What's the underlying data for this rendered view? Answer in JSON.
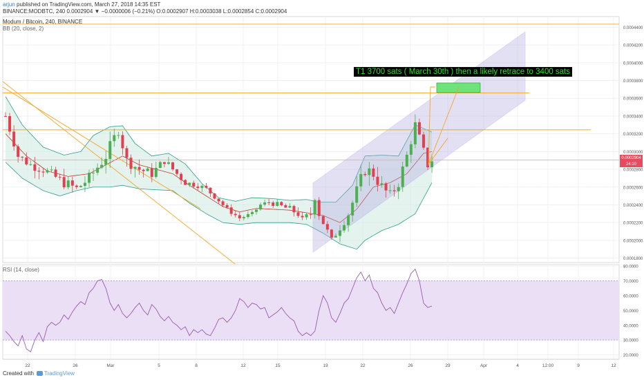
{
  "header": {
    "user": "arjun",
    "published": " published on TradingView.com, March 27, 2018 14:35 EST",
    "ticker_line": "BINANCE:MODBTC, 240  0.0002904  ▼ −0.0000006 (−0.21%)  O:0.0002907  H:0.0003038  L:0.0002854  C:0.0002904"
  },
  "main_pane": {
    "title": "Modum / Bitcoin, 240, BINANCE",
    "indicator": "BB (20, close, 2)",
    "annotation": "T1 3700 sats ( March 30th ) then a likely retrace to 3400 sats",
    "current_price": "0.0002904",
    "countdown": "24:10"
  },
  "rsi_pane": {
    "title": "RSI (14, close)"
  },
  "footer": {
    "created_with": "Created with",
    "brand": "TradingView"
  },
  "colors": {
    "candle_up": "#4caf50",
    "candle_down": "#e04050",
    "bb_fill": "#cfe9e2",
    "bb_line": "#2e9e8e",
    "basis": "#c0392b",
    "orange": "#f5a623",
    "channel": "#b0a8e0",
    "rsi_line": "#9b59b6",
    "rsi_band": "#eadff5",
    "target_box": "#6ee37a",
    "price_badge": "#e84a5f"
  },
  "chart_data": [
    {
      "type": "candlestick",
      "title": "Modum / Bitcoin, 240, BINANCE",
      "x_ticks": [
        "22",
        "26",
        "Mar",
        "5",
        "8",
        "12",
        "15",
        "19",
        "22",
        "26",
        "29",
        "Apr",
        "4",
        "12:00",
        "9",
        "12"
      ],
      "y_ticks": [
        "0.0004400",
        "0.0004200",
        "0.0004000",
        "0.0003800",
        "0.0003600",
        "0.0003400",
        "0.0003200",
        "0.0003000",
        "0.0002800",
        "0.0002600",
        "0.0002400",
        "0.0002200",
        "0.0002000",
        "0.0001800"
      ],
      "ylim": [
        0.000175,
        0.000452
      ],
      "close_path": [
        [
          0,
          3400
        ],
        [
          3,
          2950
        ],
        [
          6,
          2850
        ],
        [
          9,
          2800
        ],
        [
          14,
          2650
        ],
        [
          17,
          2580
        ],
        [
          20,
          2700
        ],
        [
          24,
          2950
        ],
        [
          26,
          3150
        ],
        [
          27,
          3250
        ],
        [
          29,
          2900
        ],
        [
          32,
          2800
        ],
        [
          35,
          2750
        ],
        [
          38,
          2900
        ],
        [
          40,
          2800
        ],
        [
          43,
          2650
        ],
        [
          46,
          2620
        ],
        [
          48,
          2580
        ],
        [
          51,
          2450
        ],
        [
          53,
          2350
        ],
        [
          56,
          2250
        ],
        [
          59,
          2300
        ],
        [
          61,
          2400
        ],
        [
          63,
          2430
        ],
        [
          65,
          2400
        ],
        [
          68,
          2350
        ],
        [
          70,
          2300
        ],
        [
          71,
          2220
        ],
        [
          73,
          2300
        ],
        [
          74,
          2500
        ],
        [
          75,
          2300
        ],
        [
          76,
          2200
        ],
        [
          78,
          2000
        ],
        [
          80,
          2150
        ],
        [
          82,
          2300
        ],
        [
          84,
          2550
        ],
        [
          86,
          2800
        ],
        [
          88,
          2750
        ],
        [
          90,
          2600
        ],
        [
          92,
          2500
        ],
        [
          94,
          2650
        ],
        [
          96,
          2950
        ],
        [
          98,
          3300
        ],
        [
          100,
          3000
        ],
        [
          101,
          2850
        ],
        [
          102,
          2904
        ]
      ],
      "volatility": [
        [
          0,
          0.3
        ],
        [
          25,
          0.45
        ],
        [
          45,
          0.2
        ],
        [
          60,
          0.12
        ],
        [
          74,
          0.35
        ],
        [
          78,
          0.25
        ],
        [
          85,
          0.5
        ],
        [
          100,
          0.35
        ],
        [
          102,
          0.3
        ]
      ],
      "bollinger": {
        "upper": [
          [
            0,
            3620
          ],
          [
            4,
            3300
          ],
          [
            9,
            3050
          ],
          [
            14,
            2960
          ],
          [
            18,
            3000
          ],
          [
            21,
            3180
          ],
          [
            25,
            3280
          ],
          [
            28,
            3290
          ],
          [
            31,
            3090
          ],
          [
            35,
            2950
          ],
          [
            39,
            2980
          ],
          [
            43,
            2860
          ],
          [
            47,
            2640
          ],
          [
            51,
            2480
          ],
          [
            55,
            2440
          ],
          [
            59,
            2480
          ],
          [
            64,
            2470
          ],
          [
            68,
            2450
          ],
          [
            72,
            2460
          ],
          [
            75,
            2430
          ],
          [
            79,
            2430
          ],
          [
            83,
            2620
          ],
          [
            86,
            2950
          ],
          [
            90,
            2960
          ],
          [
            94,
            2950
          ],
          [
            98,
            3300
          ],
          [
            102,
            3220
          ]
        ],
        "basis": [
          [
            0,
            3200
          ],
          [
            5,
            2950
          ],
          [
            10,
            2780
          ],
          [
            15,
            2720
          ],
          [
            20,
            2750
          ],
          [
            24,
            2850
          ],
          [
            28,
            2950
          ],
          [
            32,
            2850
          ],
          [
            36,
            2800
          ],
          [
            40,
            2750
          ],
          [
            44,
            2620
          ],
          [
            48,
            2500
          ],
          [
            52,
            2380
          ],
          [
            56,
            2320
          ],
          [
            60,
            2360
          ],
          [
            64,
            2350
          ],
          [
            68,
            2340
          ],
          [
            72,
            2310
          ],
          [
            76,
            2280
          ],
          [
            80,
            2200
          ],
          [
            84,
            2350
          ],
          [
            88,
            2600
          ],
          [
            92,
            2650
          ],
          [
            96,
            2750
          ],
          [
            100,
            2980
          ],
          [
            102,
            3000
          ]
        ],
        "lower": [
          [
            0,
            2880
          ],
          [
            4,
            2700
          ],
          [
            9,
            2560
          ],
          [
            13,
            2500
          ],
          [
            17,
            2560
          ],
          [
            21,
            2600
          ],
          [
            25,
            2600
          ],
          [
            28,
            2620
          ],
          [
            32,
            2580
          ],
          [
            36,
            2570
          ],
          [
            40,
            2560
          ],
          [
            44,
            2420
          ],
          [
            48,
            2300
          ],
          [
            52,
            2200
          ],
          [
            56,
            2180
          ],
          [
            60,
            2200
          ],
          [
            64,
            2200
          ],
          [
            68,
            2200
          ],
          [
            72,
            2180
          ],
          [
            76,
            2080
          ],
          [
            80,
            1960
          ],
          [
            84,
            1900
          ],
          [
            86,
            2000
          ],
          [
            90,
            2110
          ],
          [
            94,
            2180
          ],
          [
            98,
            2300
          ],
          [
            102,
            2650
          ]
        ]
      },
      "horizontal_lines": [
        0.0004435,
        0.000366,
        0.0003245,
        0.0002904
      ],
      "annotation": "T1 3700 sats ( March 30th ) then a likely retrace to 3400 sats",
      "current_price": 0.0002904
    },
    {
      "type": "line",
      "title": "RSI (14, close)",
      "y_ticks": [
        "80.0000",
        "70.0000",
        "60.0000",
        "50.0000",
        "40.0000",
        "30.0000",
        "20.0000"
      ],
      "ylim": [
        17,
        81
      ],
      "band": [
        30,
        70
      ],
      "points": [
        [
          0,
          36
        ],
        [
          1,
          33
        ],
        [
          2,
          29
        ],
        [
          3,
          26
        ],
        [
          4,
          33
        ],
        [
          5,
          24
        ],
        [
          6,
          22
        ],
        [
          7,
          30
        ],
        [
          8,
          35
        ],
        [
          9,
          29
        ],
        [
          10,
          39
        ],
        [
          11,
          42
        ],
        [
          12,
          40
        ],
        [
          13,
          42
        ],
        [
          14,
          47
        ],
        [
          15,
          44
        ],
        [
          16,
          49
        ],
        [
          17,
          53
        ],
        [
          18,
          56
        ],
        [
          19,
          54
        ],
        [
          20,
          62
        ],
        [
          21,
          65
        ],
        [
          22,
          70
        ],
        [
          23,
          71
        ],
        [
          24,
          65
        ],
        [
          25,
          55
        ],
        [
          26,
          50
        ],
        [
          27,
          54
        ],
        [
          28,
          48
        ],
        [
          29,
          45
        ],
        [
          30,
          48
        ],
        [
          31,
          52
        ],
        [
          32,
          55
        ],
        [
          33,
          50
        ],
        [
          34,
          47
        ],
        [
          35,
          54
        ],
        [
          36,
          51
        ],
        [
          37,
          46
        ],
        [
          38,
          43
        ],
        [
          39,
          46
        ],
        [
          40,
          42
        ],
        [
          41,
          40
        ],
        [
          42,
          37
        ],
        [
          43,
          39
        ],
        [
          44,
          33
        ],
        [
          45,
          37
        ],
        [
          46,
          35
        ],
        [
          47,
          37
        ],
        [
          48,
          34
        ],
        [
          49,
          33
        ],
        [
          50,
          38
        ],
        [
          51,
          44
        ],
        [
          52,
          45
        ],
        [
          53,
          42
        ],
        [
          54,
          45
        ],
        [
          55,
          50
        ],
        [
          56,
          58
        ],
        [
          57,
          56
        ],
        [
          58,
          52
        ],
        [
          59,
          55
        ],
        [
          60,
          54
        ],
        [
          61,
          51
        ],
        [
          62,
          52
        ],
        [
          63,
          45
        ],
        [
          64,
          47
        ],
        [
          65,
          49
        ],
        [
          66,
          52
        ],
        [
          67,
          48
        ],
        [
          68,
          45
        ],
        [
          69,
          43
        ],
        [
          70,
          36
        ],
        [
          71,
          33
        ],
        [
          72,
          35
        ],
        [
          73,
          33
        ],
        [
          74,
          36
        ],
        [
          75,
          50
        ],
        [
          76,
          60
        ],
        [
          77,
          55
        ],
        [
          78,
          45
        ],
        [
          79,
          42
        ],
        [
          80,
          48
        ],
        [
          81,
          55
        ],
        [
          82,
          58
        ],
        [
          83,
          65
        ],
        [
          84,
          72
        ],
        [
          85,
          76
        ],
        [
          86,
          70
        ],
        [
          87,
          74
        ],
        [
          88,
          65
        ],
        [
          89,
          62
        ],
        [
          90,
          55
        ],
        [
          91,
          50
        ],
        [
          92,
          52
        ],
        [
          93,
          48
        ],
        [
          94,
          55
        ],
        [
          95,
          62
        ],
        [
          96,
          68
        ],
        [
          97,
          75
        ],
        [
          98,
          78
        ],
        [
          99,
          70
        ],
        [
          100,
          55
        ],
        [
          101,
          52
        ],
        [
          102,
          53
        ]
      ]
    }
  ]
}
